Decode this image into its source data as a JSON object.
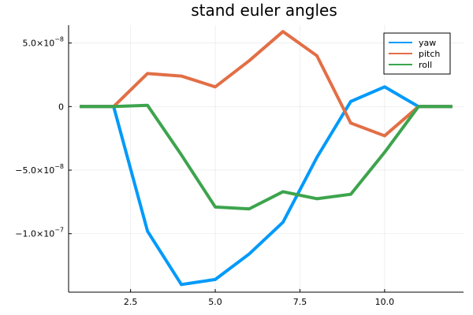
{
  "chart_data": {
    "type": "line",
    "title": "stand euler angles",
    "xlabel": "",
    "ylabel": "",
    "xlim": [
      0.67,
      12.33
    ],
    "ylim": [
      -1.46e-07,
      6.4e-08
    ],
    "x_ticks": [
      2.5,
      5.0,
      7.5,
      10.0
    ],
    "x_tick_labels": [
      "2.5",
      "5.0",
      "7.5",
      "10.0"
    ],
    "y_ticks": [
      5e-08,
      0,
      -5e-08,
      -1e-07
    ],
    "y_tick_labels": [
      {
        "mantissa": "5.0×10",
        "exponent": "−8"
      },
      {
        "mantissa": "0",
        "exponent": ""
      },
      {
        "mantissa": "−5.0×10",
        "exponent": "−8"
      },
      {
        "mantissa": "−1.0×10",
        "exponent": "−7"
      }
    ],
    "grid": true,
    "legend_position": "top-right",
    "x": [
      1,
      2,
      3,
      4,
      5,
      6,
      7,
      8,
      9,
      10,
      11,
      12
    ],
    "series": [
      {
        "name": "yaw",
        "color": "#009AFA",
        "values": [
          0,
          0,
          -9.8e-08,
          -1.4e-07,
          -1.36e-07,
          -1.16e-07,
          -9.1e-08,
          -4e-08,
          4e-09,
          1.55e-08,
          0,
          0
        ]
      },
      {
        "name": "pitch",
        "color": "#E26F46",
        "values": [
          0,
          0,
          2.6e-08,
          2.4e-08,
          1.55e-08,
          3.6e-08,
          5.9e-08,
          4e-08,
          -1.3e-08,
          -2.3e-08,
          0,
          0
        ]
      },
      {
        "name": "roll",
        "color": "#3DA44D",
        "values": [
          0,
          0,
          1e-09,
          -3.8e-08,
          -7.9e-08,
          -8.05e-08,
          -6.7e-08,
          -7.25e-08,
          -6.9e-08,
          -3.6e-08,
          0,
          0
        ]
      }
    ]
  }
}
